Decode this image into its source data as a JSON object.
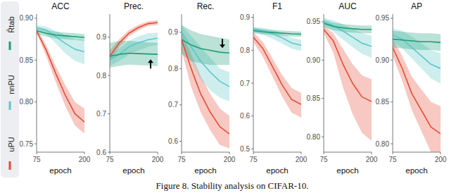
{
  "chart_data": [
    {
      "type": "line",
      "title": "ACC",
      "x_label": "epoch",
      "legend": "left",
      "x": [
        75,
        100,
        125,
        150,
        175,
        200
      ],
      "xlim": [
        75,
        200
      ],
      "xticks": [
        75,
        200
      ],
      "ylim": [
        0.74,
        0.905
      ],
      "yticks": [
        0.75,
        {
          "value": 0.8,
          "label": "0.80"
        },
        0.85,
        {
          "value": 0.9,
          "label": "0.90"
        }
      ],
      "series": [
        {
          "name": "R̂tab",
          "color": "#1b9e77",
          "values": [
            0.885,
            0.882,
            0.88,
            0.879,
            0.878,
            0.877
          ],
          "lower": [
            0.881,
            0.878,
            0.876,
            0.875,
            0.874,
            0.873
          ],
          "upper": [
            0.889,
            0.886,
            0.884,
            0.883,
            0.882,
            0.881
          ]
        },
        {
          "name": "nnPU",
          "color": "#5cc6c8",
          "values": [
            0.889,
            0.886,
            0.878,
            0.87,
            0.863,
            0.86
          ],
          "lower": [
            0.886,
            0.881,
            0.87,
            0.858,
            0.849,
            0.845
          ],
          "upper": [
            0.892,
            0.89,
            0.885,
            0.88,
            0.875,
            0.874
          ]
        },
        {
          "name": "uPU",
          "color": "#e64b35",
          "values": [
            0.885,
            0.862,
            0.834,
            0.808,
            0.786,
            0.776
          ],
          "lower": [
            0.882,
            0.855,
            0.824,
            0.795,
            0.772,
            0.762
          ],
          "upper": [
            0.888,
            0.868,
            0.843,
            0.82,
            0.8,
            0.792
          ]
        }
      ]
    },
    {
      "type": "line",
      "title": "Prec.",
      "x_label": "epoch",
      "x": [
        75,
        100,
        125,
        150,
        175,
        200
      ],
      "xlim": [
        75,
        200
      ],
      "xticks": [
        75,
        200
      ],
      "ylim": [
        0.6,
        0.96
      ],
      "yticks": [
        0.6,
        0.7,
        0.8,
        0.9
      ],
      "series": [
        {
          "color": "#1b9e77",
          "values": [
            0.85,
            0.855,
            0.858,
            0.857,
            0.856,
            0.855
          ],
          "lower": [
            0.82,
            0.825,
            0.828,
            0.827,
            0.826,
            0.824
          ],
          "upper": [
            0.885,
            0.89,
            0.89,
            0.888,
            0.886,
            0.885
          ]
        },
        {
          "color": "#5cc6c8",
          "values": [
            0.84,
            0.855,
            0.875,
            0.885,
            0.893,
            0.897
          ],
          "lower": [
            0.825,
            0.838,
            0.855,
            0.865,
            0.875,
            0.88
          ],
          "upper": [
            0.855,
            0.87,
            0.89,
            0.902,
            0.91,
            0.912
          ]
        },
        {
          "color": "#e64b35",
          "values": [
            0.85,
            0.885,
            0.91,
            0.925,
            0.935,
            0.938
          ],
          "lower": [
            0.835,
            0.875,
            0.902,
            0.918,
            0.929,
            0.932
          ],
          "upper": [
            0.865,
            0.895,
            0.918,
            0.932,
            0.941,
            0.944
          ]
        }
      ]
    },
    {
      "type": "line",
      "title": "Rec.",
      "x_label": "epoch",
      "x": [
        75,
        100,
        125,
        150,
        175,
        200
      ],
      "xlim": [
        75,
        200
      ],
      "xticks": [
        75,
        200
      ],
      "ylim": [
        0.57,
        0.95
      ],
      "yticks": [
        0.6,
        0.7,
        0.8,
        0.9
      ],
      "series": [
        {
          "color": "#1b9e77",
          "values": [
            0.88,
            0.865,
            0.855,
            0.85,
            0.845,
            0.843
          ],
          "lower": [
            0.84,
            0.82,
            0.815,
            0.81,
            0.81,
            0.81
          ],
          "upper": [
            0.92,
            0.905,
            0.895,
            0.89,
            0.885,
            0.88
          ]
        },
        {
          "color": "#5cc6c8",
          "values": [
            0.9,
            0.86,
            0.82,
            0.79,
            0.765,
            0.75
          ],
          "lower": [
            0.87,
            0.82,
            0.77,
            0.74,
            0.72,
            0.71
          ],
          "upper": [
            0.92,
            0.89,
            0.86,
            0.83,
            0.8,
            0.79
          ]
        },
        {
          "color": "#e64b35",
          "values": [
            0.88,
            0.8,
            0.73,
            0.68,
            0.64,
            0.62
          ],
          "lower": [
            0.85,
            0.75,
            0.68,
            0.63,
            0.59,
            0.58
          ],
          "upper": [
            0.9,
            0.84,
            0.78,
            0.73,
            0.69,
            0.67
          ]
        }
      ]
    },
    {
      "type": "line",
      "title": "F1",
      "x_label": "epoch",
      "x": [
        75,
        100,
        125,
        150,
        175,
        200
      ],
      "xlim": [
        75,
        200
      ],
      "xticks": [
        75,
        200
      ],
      "ylim": [
        0.49,
        0.91
      ],
      "yticks": [
        0.5,
        0.6,
        0.7,
        0.8,
        0.9
      ],
      "series": [
        {
          "color": "#1b9e77",
          "values": [
            0.86,
            0.856,
            0.854,
            0.852,
            0.85,
            0.849
          ],
          "lower": [
            0.852,
            0.848,
            0.846,
            0.844,
            0.842,
            0.841
          ],
          "upper": [
            0.868,
            0.864,
            0.862,
            0.86,
            0.858,
            0.857
          ]
        },
        {
          "color": "#5cc6c8",
          "values": [
            0.865,
            0.86,
            0.85,
            0.838,
            0.822,
            0.815
          ],
          "lower": [
            0.855,
            0.848,
            0.835,
            0.82,
            0.805,
            0.798
          ],
          "upper": [
            0.872,
            0.868,
            0.862,
            0.852,
            0.838,
            0.832
          ]
        },
        {
          "color": "#e64b35",
          "values": [
            0.84,
            0.805,
            0.75,
            0.695,
            0.65,
            0.635
          ],
          "lower": [
            0.825,
            0.78,
            0.72,
            0.66,
            0.61,
            0.595
          ],
          "upper": [
            0.855,
            0.825,
            0.775,
            0.725,
            0.685,
            0.67
          ]
        }
      ]
    },
    {
      "type": "line",
      "title": "AUC",
      "x_label": "epoch",
      "x": [
        75,
        100,
        125,
        150,
        175,
        200
      ],
      "xlim": [
        75,
        200
      ],
      "xticks": [
        75,
        200
      ],
      "ylim": [
        0.78,
        0.96
      ],
      "yticks": [
        {
          "value": 0.8,
          "label": "0.80"
        },
        0.85,
        {
          "value": 0.9,
          "label": "0.90"
        },
        0.95
      ],
      "series": [
        {
          "color": "#1b9e77",
          "values": [
            0.948,
            0.944,
            0.942,
            0.941,
            0.94,
            0.94
          ],
          "lower": [
            0.943,
            0.939,
            0.937,
            0.936,
            0.935,
            0.935
          ],
          "upper": [
            0.953,
            0.949,
            0.947,
            0.946,
            0.945,
            0.945
          ]
        },
        {
          "color": "#5cc6c8",
          "values": [
            0.95,
            0.945,
            0.938,
            0.93,
            0.922,
            0.918
          ],
          "lower": [
            0.945,
            0.937,
            0.927,
            0.917,
            0.908,
            0.903
          ],
          "upper": [
            0.955,
            0.952,
            0.947,
            0.941,
            0.935,
            0.932
          ]
        },
        {
          "color": "#e64b35",
          "values": [
            0.94,
            0.925,
            0.895,
            0.87,
            0.852,
            0.846
          ],
          "lower": [
            0.935,
            0.91,
            0.865,
            0.83,
            0.805,
            0.795
          ],
          "upper": [
            0.945,
            0.935,
            0.915,
            0.895,
            0.88,
            0.875
          ]
        }
      ]
    },
    {
      "type": "line",
      "title": "AP",
      "x_label": "epoch",
      "x": [
        75,
        100,
        125,
        150,
        175,
        200
      ],
      "xlim": [
        75,
        200
      ],
      "xticks": [
        75,
        200
      ],
      "ylim": [
        0.79,
        0.955
      ],
      "yticks": [
        {
          "value": 0.8,
          "label": "0.80"
        },
        0.85,
        {
          "value": 0.9,
          "label": "0.90"
        },
        0.95
      ],
      "series": [
        {
          "color": "#1b9e77",
          "values": [
            0.925,
            0.924,
            0.923,
            0.922,
            0.922,
            0.921
          ],
          "lower": [
            0.915,
            0.914,
            0.913,
            0.912,
            0.912,
            0.911
          ],
          "upper": [
            0.935,
            0.934,
            0.933,
            0.932,
            0.932,
            0.931
          ]
        },
        {
          "color": "#5cc6c8",
          "values": [
            0.93,
            0.925,
            0.915,
            0.905,
            0.895,
            0.89
          ],
          "lower": [
            0.922,
            0.914,
            0.902,
            0.89,
            0.878,
            0.872
          ],
          "upper": [
            0.938,
            0.935,
            0.928,
            0.92,
            0.912,
            0.908
          ]
        },
        {
          "color": "#e64b35",
          "values": [
            0.915,
            0.89,
            0.86,
            0.84,
            0.82,
            0.812
          ],
          "lower": [
            0.905,
            0.875,
            0.84,
            0.815,
            0.79,
            0.78
          ],
          "upper": [
            0.925,
            0.905,
            0.88,
            0.865,
            0.85,
            0.845
          ]
        }
      ]
    }
  ],
  "caption": "Figure 8. Stability analysis on CIFAR-10."
}
